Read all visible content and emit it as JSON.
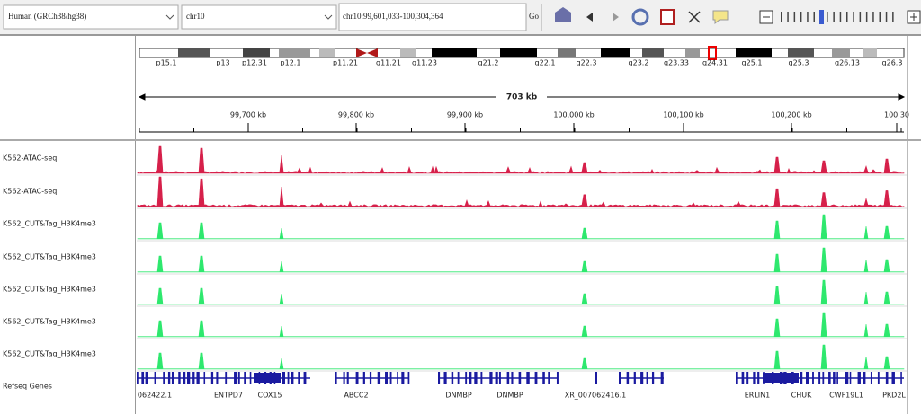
{
  "toolbar": {
    "genome": "Human (GRCh38/hg38)",
    "chromosome": "chr10",
    "locus": "chr10:99,601,033-100,304,364",
    "go": "Go"
  },
  "ideogram": {
    "bands": [
      "p15.1",
      "p13",
      "p12.31",
      "p12.1",
      "p11.21",
      "q11.21",
      "q11.23",
      "q21.2",
      "q22.1",
      "q22.3",
      "q23.2",
      "q23.33",
      "q24.31",
      "q25.1",
      "q25.3",
      "q26.13",
      "q26.3"
    ]
  },
  "ruler": {
    "span": "703 kb",
    "ticks": [
      "99,700 kb",
      "99,800 kb",
      "99,900 kb",
      "100,000 kb",
      "100,100 kb",
      "100,200 kb",
      "100,30"
    ]
  },
  "tracks": [
    {
      "name": "K562-ATAC-seq"
    },
    {
      "name": "K562-ATAC-seq"
    },
    {
      "name": "K562_CUT&Tag_H3K4me3"
    },
    {
      "name": "K562_CUT&Tag_H3K4me3"
    },
    {
      "name": "K562_CUT&Tag_H3K4me3"
    },
    {
      "name": "K562_CUT&Tag_H3K4me3"
    },
    {
      "name": "K562_CUT&Tag_H3K4me3"
    }
  ],
  "genes": {
    "track": "Refseq Genes",
    "labels": [
      "062422.1",
      "ENTPD7",
      "COX15",
      "ABCC2",
      "DNMBP",
      "DNMBP",
      "XR_007062416.1",
      "ERLIN1",
      "CHUK",
      "CWF19L1",
      "PKD2L"
    ]
  }
}
